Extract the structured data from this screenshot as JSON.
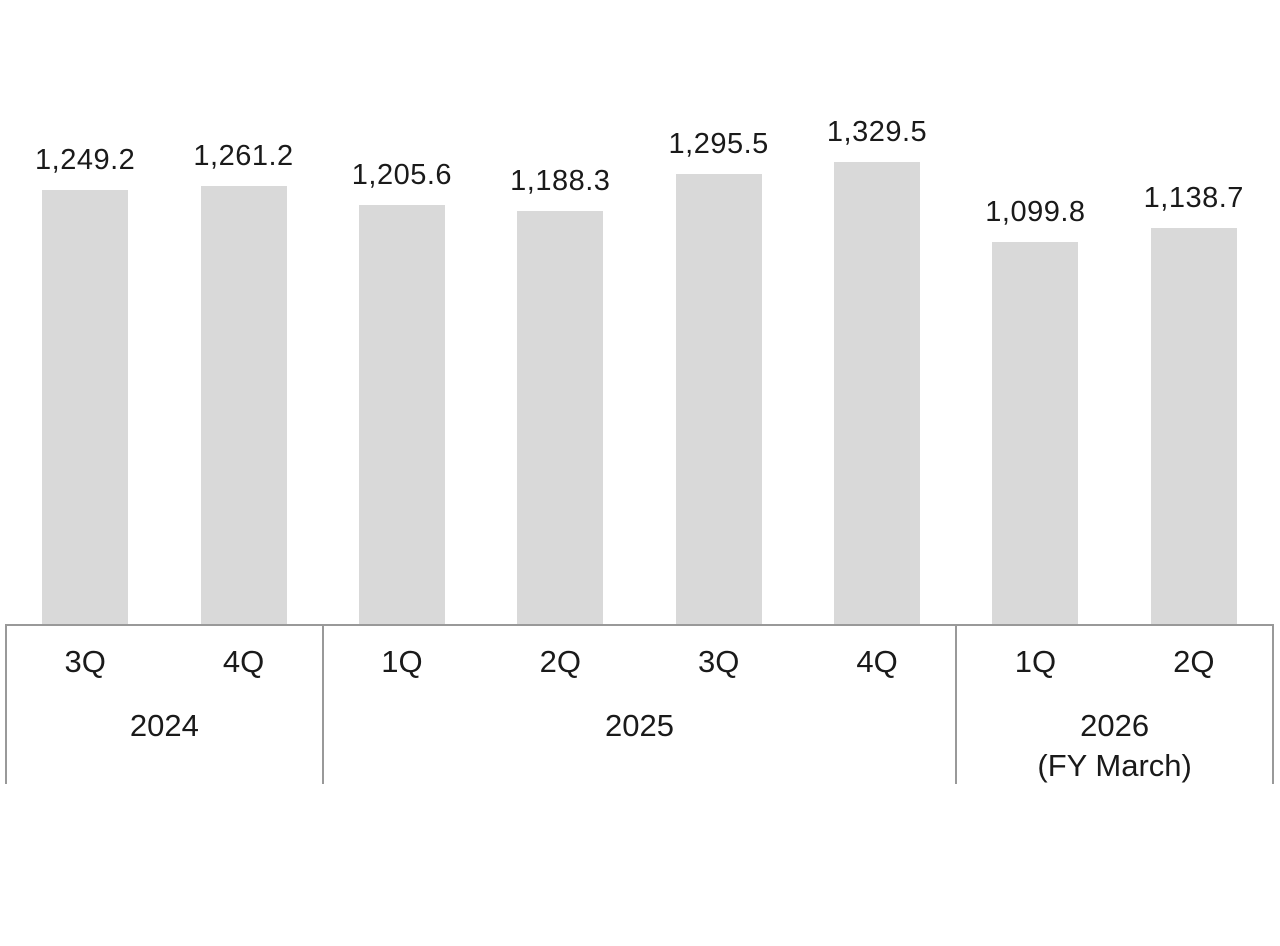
{
  "chart_data": {
    "type": "bar",
    "title": "",
    "xlabel": "",
    "ylabel": "",
    "grid": false,
    "legend": false,
    "ylim": [
      0,
      1400
    ],
    "categories": [
      "3Q",
      "4Q",
      "1Q",
      "2Q",
      "3Q",
      "4Q",
      "1Q",
      "2Q"
    ],
    "values": [
      1249.2,
      1261.2,
      1205.6,
      1188.3,
      1295.5,
      1329.5,
      1099.8,
      1138.7
    ],
    "value_labels": [
      "1,249.2",
      "1,261.2",
      "1,205.6",
      "1,188.3",
      "1,295.5",
      "1,329.5",
      "1,099.8",
      "1,138.7"
    ],
    "groups": [
      {
        "label": "2024",
        "sublabel": "",
        "start": 0,
        "count": 2
      },
      {
        "label": "2025",
        "sublabel": "",
        "start": 2,
        "count": 4
      },
      {
        "label": "2026",
        "sublabel": "(FY March)",
        "start": 6,
        "count": 2
      }
    ],
    "colors": {
      "bar_fill": "#d9d9d9",
      "axis_line": "#999999",
      "text": "#1a1a1a"
    }
  }
}
